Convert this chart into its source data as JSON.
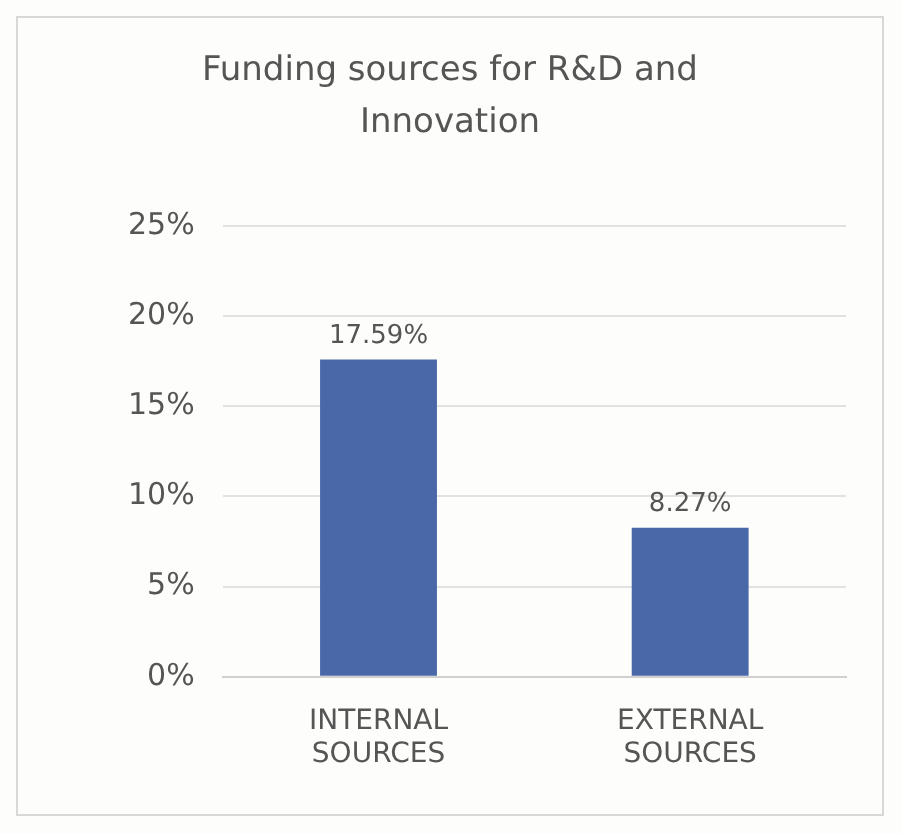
{
  "chart_data": {
    "type": "bar",
    "title": "Funding sources for R&D and Innovation",
    "categories": [
      "INTERNAL SOURCES",
      "EXTERNAL SOURCES"
    ],
    "values": [
      17.59,
      8.27
    ],
    "color": "#4a68a8",
    "value_labels": [
      "17.59%",
      "8.27%"
    ],
    "ylim": [
      0,
      25
    ],
    "yticks": [
      {
        "value": 0,
        "label": "0%"
      },
      {
        "value": 5,
        "label": "5%"
      },
      {
        "value": 10,
        "label": "10%"
      },
      {
        "value": 15,
        "label": "15%"
      },
      {
        "value": 20,
        "label": "20%"
      },
      {
        "value": 25,
        "label": "25%"
      }
    ],
    "grid": "y",
    "legend": false
  }
}
